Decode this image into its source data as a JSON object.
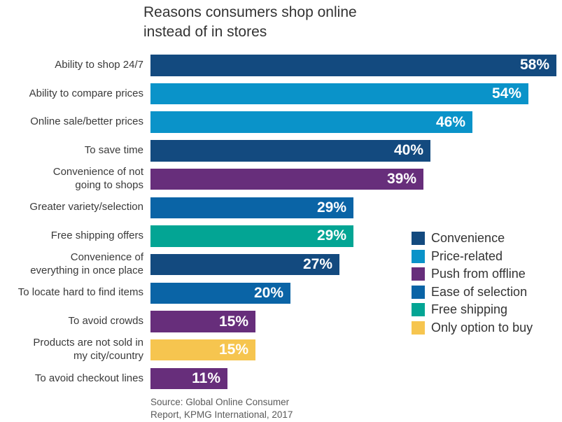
{
  "chart_data": {
    "type": "bar",
    "orientation": "horizontal",
    "title": "Reasons consumers shop online instead of in stores",
    "title_display": "Reasons consumers shop online\ninstead of in stores",
    "value_suffix": "%",
    "xlim": [
      0,
      60
    ],
    "grid": false,
    "axis_visible": false,
    "source": "Source: Global Online Consumer\nReport, KPMG International, 2017",
    "categories": [
      "Ability to shop 24/7",
      "Ability to compare prices",
      "Online sale/better prices",
      "To save time",
      "Convenience of not going to shops",
      "Greater variety/selection",
      "Free shipping offers",
      "Convenience of everything in once place",
      "To locate hard to find items",
      "To avoid crowds",
      "Products are not sold in my city/country",
      "To avoid checkout lines"
    ],
    "values": [
      58,
      54,
      46,
      40,
      39,
      29,
      29,
      27,
      20,
      15,
      15,
      11
    ],
    "rows": [
      {
        "label": "Ability to shop 24/7",
        "value": 58,
        "display": "58%",
        "category": "Convenience",
        "color": "#134A7F"
      },
      {
        "label": "Ability to compare prices",
        "value": 54,
        "display": "54%",
        "category": "Price-related",
        "color": "#0A93C9"
      },
      {
        "label": "Online sale/better prices",
        "value": 46,
        "display": "46%",
        "category": "Price-related",
        "color": "#0A93C9"
      },
      {
        "label": "To save time",
        "value": 40,
        "display": "40%",
        "category": "Convenience",
        "color": "#134A7F"
      },
      {
        "label": "Convenience of not\ngoing to shops",
        "value": 39,
        "display": "39%",
        "category": "Push from offline",
        "color": "#672E7B"
      },
      {
        "label": "Greater variety/selection",
        "value": 29,
        "display": "29%",
        "category": "Ease of selection",
        "color": "#0A64A6"
      },
      {
        "label": "Free shipping offers",
        "value": 29,
        "display": "29%",
        "category": "Free shipping",
        "color": "#03A594"
      },
      {
        "label": "Convenience of\neverything in once place",
        "value": 27,
        "display": "27%",
        "category": "Convenience",
        "color": "#134A7F"
      },
      {
        "label": "To locate hard to find items",
        "value": 20,
        "display": "20%",
        "category": "Ease of selection",
        "color": "#0A64A6"
      },
      {
        "label": "To avoid crowds",
        "value": 15,
        "display": "15%",
        "category": "Push from offline",
        "color": "#672E7B"
      },
      {
        "label": "Products are not sold in\nmy city/country",
        "value": 15,
        "display": "15%",
        "category": "Only option to buy",
        "color": "#F6C54F"
      },
      {
        "label": "To avoid checkout lines",
        "value": 11,
        "display": "11%",
        "category": "Push from offline",
        "color": "#672E7B"
      }
    ],
    "legend": {
      "position": "right",
      "entries": [
        {
          "label": "Convenience",
          "color": "#134A7F"
        },
        {
          "label": "Price-related",
          "color": "#0A93C9"
        },
        {
          "label": "Push from offline",
          "color": "#672E7B"
        },
        {
          "label": "Ease of selection",
          "color": "#0A64A6"
        },
        {
          "label": "Free shipping",
          "color": "#03A594"
        },
        {
          "label": "Only option to buy",
          "color": "#F6C54F"
        }
      ]
    }
  }
}
